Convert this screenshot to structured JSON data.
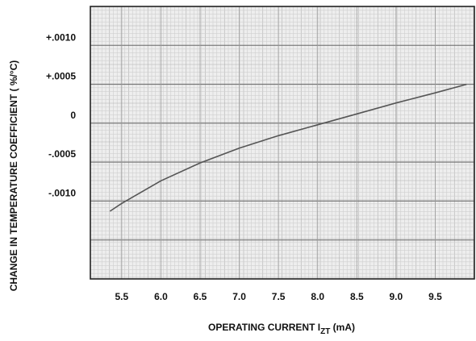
{
  "chart_data": {
    "type": "line",
    "xlabel_main": "OPERATING CURRENT I",
    "xlabel_sub": "ZT",
    "xlabel_unit": " (mA)",
    "ylabel": "CHANGE IN TEMPERATURE COEFFICIENT ( %/°C)",
    "x_ticks": [
      5.5,
      6.0,
      6.5,
      7.0,
      7.5,
      8.0,
      8.5,
      9.0,
      9.5
    ],
    "x_tick_labels": [
      "5.5",
      "6.0",
      "6.5",
      "7.0",
      "7.5",
      "8.0",
      "8.5",
      "9.0",
      "9.5"
    ],
    "y_ticks": [
      0.001,
      0.0005,
      0,
      -0.0005,
      -0.001
    ],
    "y_tick_labels": [
      "+.0010",
      "+.0005",
      "0",
      "-.0005",
      "-.0010"
    ],
    "xlim": [
      5.1,
      10.0
    ],
    "ylim": [
      -0.002,
      0.0015
    ],
    "grid": true,
    "series": [
      {
        "color": "#555555",
        "x": [
          5.35,
          5.5,
          6.0,
          6.5,
          7.0,
          7.5,
          8.0,
          8.5,
          9.0,
          9.5,
          9.9
        ],
        "y": [
          -0.00113,
          -0.00103,
          -0.00074,
          -0.00051,
          -0.00032,
          -0.00016,
          -2e-05,
          0.00012,
          0.00026,
          0.00039,
          0.0005
        ]
      }
    ]
  }
}
